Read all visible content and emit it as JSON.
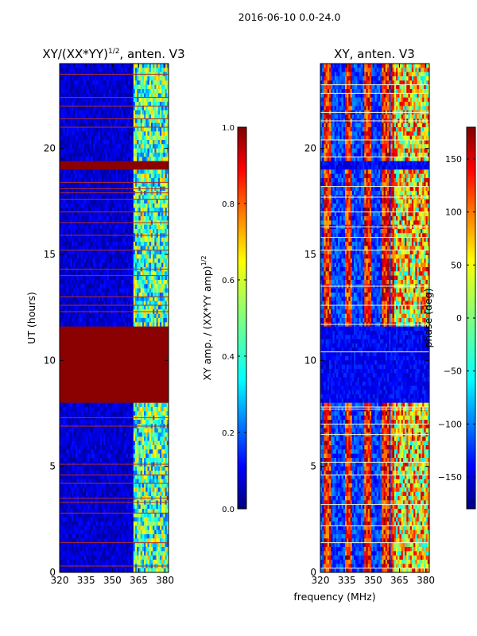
{
  "figure": {
    "suptitle": "2016-06-10 0.0-24.0",
    "xlabel": "frequency (MHz)"
  },
  "colors": {
    "jet": [
      "#00007f",
      "#0000ff",
      "#007fff",
      "#00ffff",
      "#7fff7f",
      "#ffff00",
      "#ff7f00",
      "#ff0000",
      "#7f0000"
    ],
    "flag": "#8b0000",
    "line_flag_left": "#b0302a",
    "line_flag_right": "#f3f8d0"
  },
  "chart_data": [
    {
      "type": "heatmap",
      "title_main": "XY/(XX*YY)",
      "title_sup": "1/2",
      "title_tail": ", anten. V3",
      "xlabel": "",
      "ylabel": "UT (hours)",
      "xlim": [
        320,
        382
      ],
      "ylim": [
        0,
        24
      ],
      "xticks": [
        320,
        335,
        350,
        365,
        380
      ],
      "yticks": [
        0,
        5,
        10,
        15,
        20
      ],
      "colorbar": {
        "label_main": "XY amp. / (XX*YY amp)",
        "label_sup": "1/2",
        "range": [
          0,
          1
        ],
        "ticks": [
          "0.0",
          "0.2",
          "0.4",
          "0.6",
          "0.8",
          "1.0"
        ]
      },
      "saturated_bands_hours": [
        [
          8.0,
          11.6
        ],
        [
          19.0,
          19.4
        ]
      ],
      "flag_lines_hours": [
        0.3,
        1.4,
        2.8,
        3.3,
        3.5,
        4.2,
        4.6,
        5.1,
        6.9,
        7.3,
        12.3,
        12.6,
        13.0,
        14.0,
        14.3,
        15.2,
        15.9,
        16.5,
        17.0,
        17.6,
        17.9,
        18.1,
        18.4,
        21.0,
        21.4,
        22.0,
        22.4,
        23.5
      ],
      "band_structure": {
        "low_freq_range_mhz": [
          320,
          362
        ],
        "low_freq_level": 0.08,
        "high_freq_range_mhz": [
          362,
          382
        ],
        "high_freq_level": 0.45
      }
    },
    {
      "type": "heatmap",
      "title_main": "XY, anten. V3",
      "xlabel": "",
      "ylabel": "",
      "xlim": [
        320,
        382
      ],
      "ylim": [
        0,
        24
      ],
      "xticks": [
        320,
        335,
        350,
        365,
        380
      ],
      "yticks": [
        0,
        5,
        10,
        15,
        20
      ],
      "colorbar": {
        "label": "phase (deg)",
        "range": [
          -180,
          180
        ],
        "ticks": [
          "−150",
          "−100",
          "−50",
          "0",
          "50",
          "100",
          "150"
        ]
      },
      "dark_bands_hours": [
        [
          8.0,
          11.6
        ],
        [
          19.0,
          19.4
        ]
      ],
      "flag_lines_hours": [
        0.2,
        1.4,
        2.2,
        3.2,
        4.6,
        5.2,
        6.5,
        7.0,
        7.7,
        7.8,
        10.4,
        11.7,
        12.6,
        13.5,
        15.2,
        15.8,
        16.3,
        17.0,
        17.7,
        18.2,
        19.6,
        20.4,
        21.3,
        21.7,
        22.6,
        23.0
      ],
      "stripe_freqs_mhz": [
        324,
        336,
        347,
        357,
        362
      ],
      "stripe_level_deg": 160
    }
  ]
}
